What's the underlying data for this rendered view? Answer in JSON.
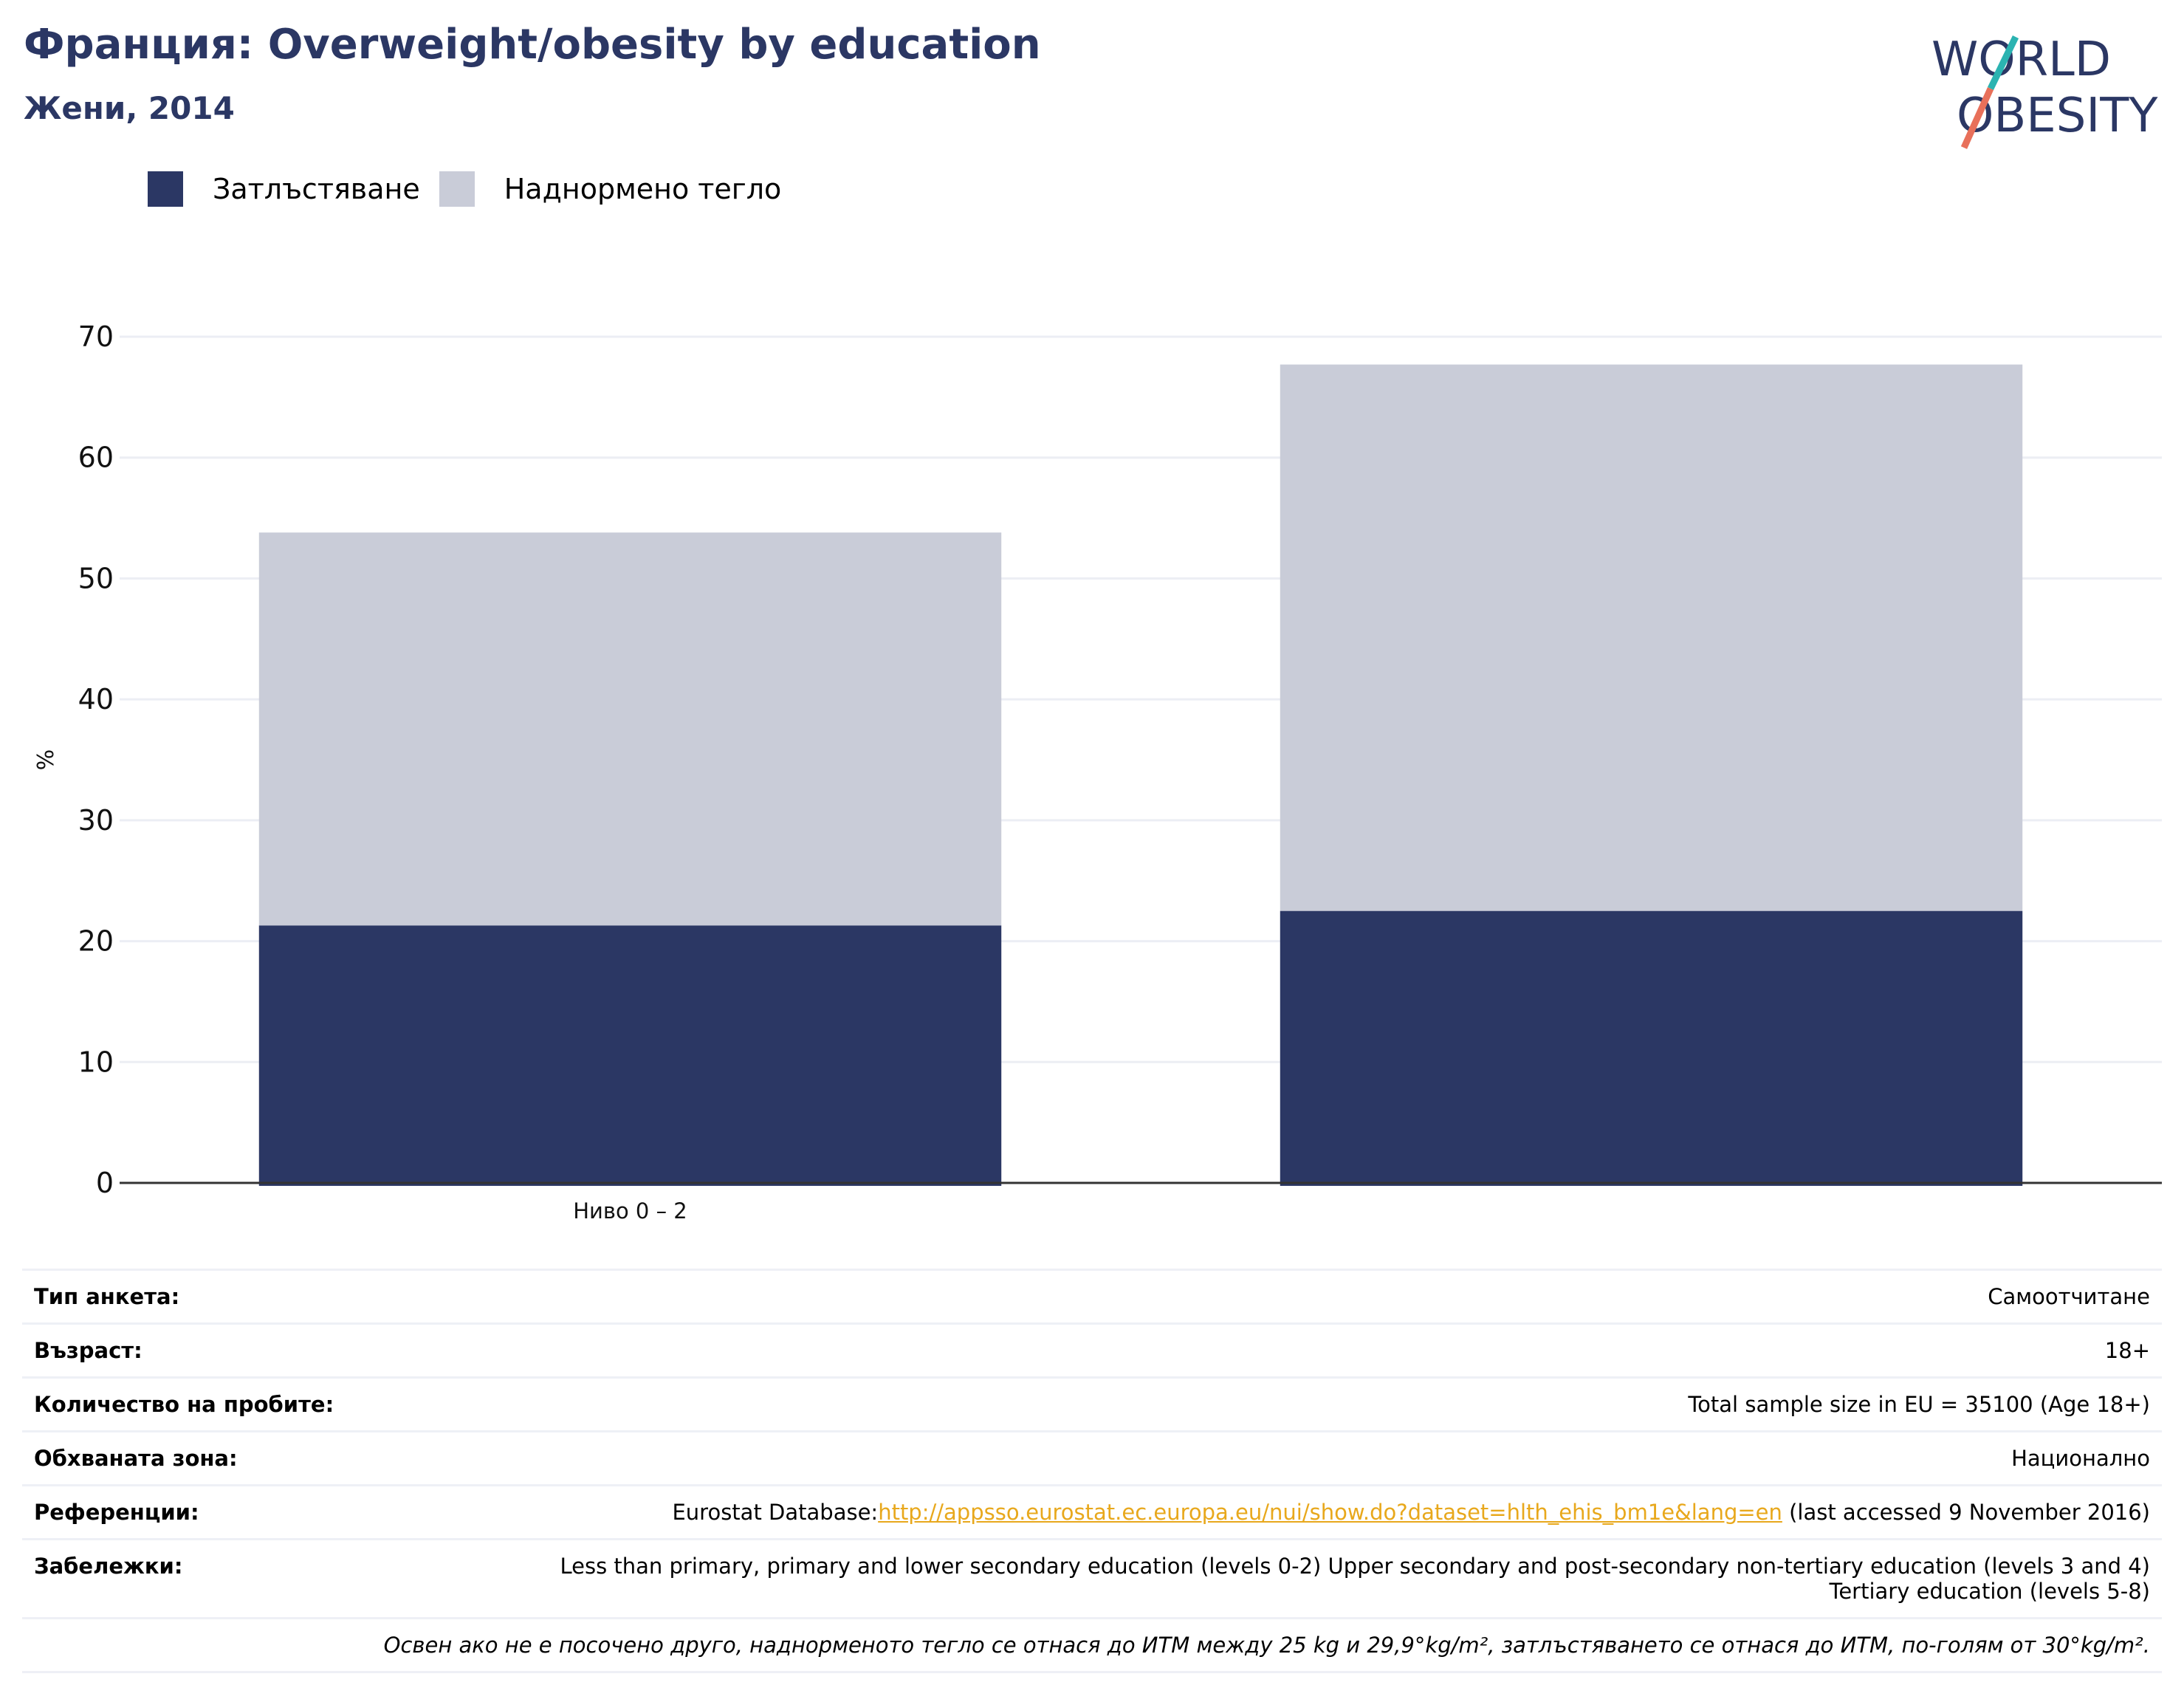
{
  "header": {
    "title": "Франция: Overweight/obesity by education",
    "subtitle": "Жени, 2014"
  },
  "logo": {
    "line1": "WORLD",
    "line2": "OBESITY",
    "colors": {
      "text": "#2b3764",
      "teal": "#2bb3b1",
      "coral": "#e8705a"
    }
  },
  "colors": {
    "obesity": "#2b3764",
    "overweight": "#c9ccd8",
    "axis": "#333333",
    "grid": "#eceef4",
    "link": "#e8a81c"
  },
  "chart_data": {
    "type": "bar",
    "stacked": true,
    "categories": [
      "Ниво 0 – 2",
      ""
    ],
    "series": [
      {
        "name": "Затлъстяване",
        "values": [
          21.3,
          22.5
        ]
      },
      {
        "name": "Наднормено тегло",
        "values": [
          32.5,
          45.2
        ]
      }
    ],
    "ylabel": "%",
    "ylim": [
      0,
      70
    ],
    "yticks": [
      0,
      10,
      20,
      30,
      40,
      50,
      60,
      70
    ],
    "grid": true,
    "legend": "top-left"
  },
  "info": {
    "rows": [
      {
        "key": "Тип анкета:",
        "value": "Самоотчитане"
      },
      {
        "key": "Възраст:",
        "value": "18+"
      },
      {
        "key": "Количество на пробите:",
        "value": "Total sample size in EU = 35100 (Age 18+)"
      },
      {
        "key": "Обхваната зона:",
        "value": "Национално"
      }
    ],
    "references": {
      "key": "Референции:",
      "prefix": "Eurostat Database:",
      "link": "http://appsso.eurostat.ec.europa.eu/nui/show.do?dataset=hlth_ehis_bm1e&lang=en",
      "suffix": " (last accessed 9 November 2016)"
    },
    "notes": {
      "key": "Забележки:",
      "value": "Less than primary, primary and lower secondary education (levels 0-2) Upper secondary and post-secondary non-tertiary education (levels 3 and 4) Tertiary education (levels 5-8)"
    },
    "footnote": "Освен ако не е посочено друго, наднорменото тегло се отнася до ИТМ между 25 kg и 29,9°kg/m², затлъстяването се отнася до ИТМ, по-голям от 30°kg/m²."
  }
}
